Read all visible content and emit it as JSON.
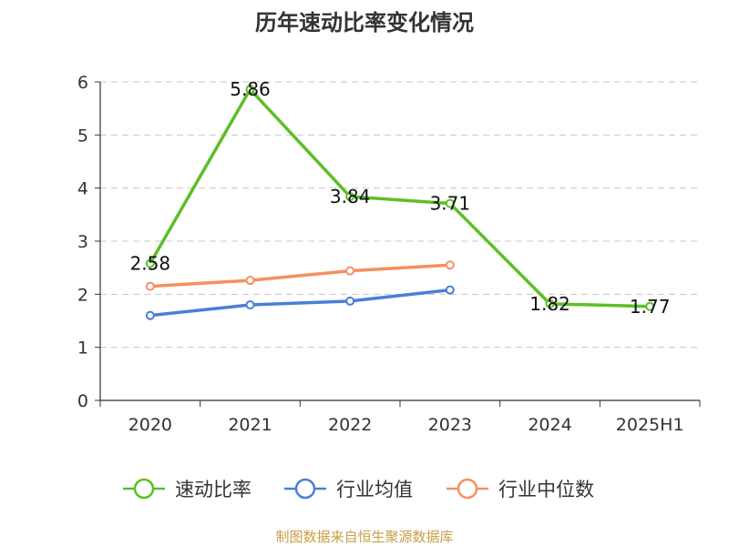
{
  "chart_data": {
    "type": "line",
    "title": "历年速动比率变化情况",
    "categories": [
      "2020",
      "2021",
      "2022",
      "2023",
      "2024",
      "2025H1"
    ],
    "yticks": [
      "0",
      "1",
      "2",
      "3",
      "4",
      "5",
      "6"
    ],
    "ylim": [
      0,
      6
    ],
    "grid": true,
    "legend_position": "bottom",
    "series": [
      {
        "name": "速动比率",
        "color": "#5dbf26",
        "values": [
          2.58,
          5.86,
          3.84,
          3.71,
          1.82,
          1.77
        ],
        "labels": [
          "2.58",
          "5.86",
          "3.84",
          "3.71",
          "1.82",
          "1.77"
        ]
      },
      {
        "name": "行业均值",
        "color": "#4a7fd6",
        "values": [
          1.6,
          1.8,
          1.87,
          2.08,
          null,
          null
        ]
      },
      {
        "name": "行业中位数",
        "color": "#f49062",
        "values": [
          2.15,
          2.26,
          2.44,
          2.55,
          null,
          null
        ]
      }
    ]
  },
  "footer": {
    "source": "制图数据来自恒生聚源数据库",
    "source_color": "#c8a046"
  }
}
